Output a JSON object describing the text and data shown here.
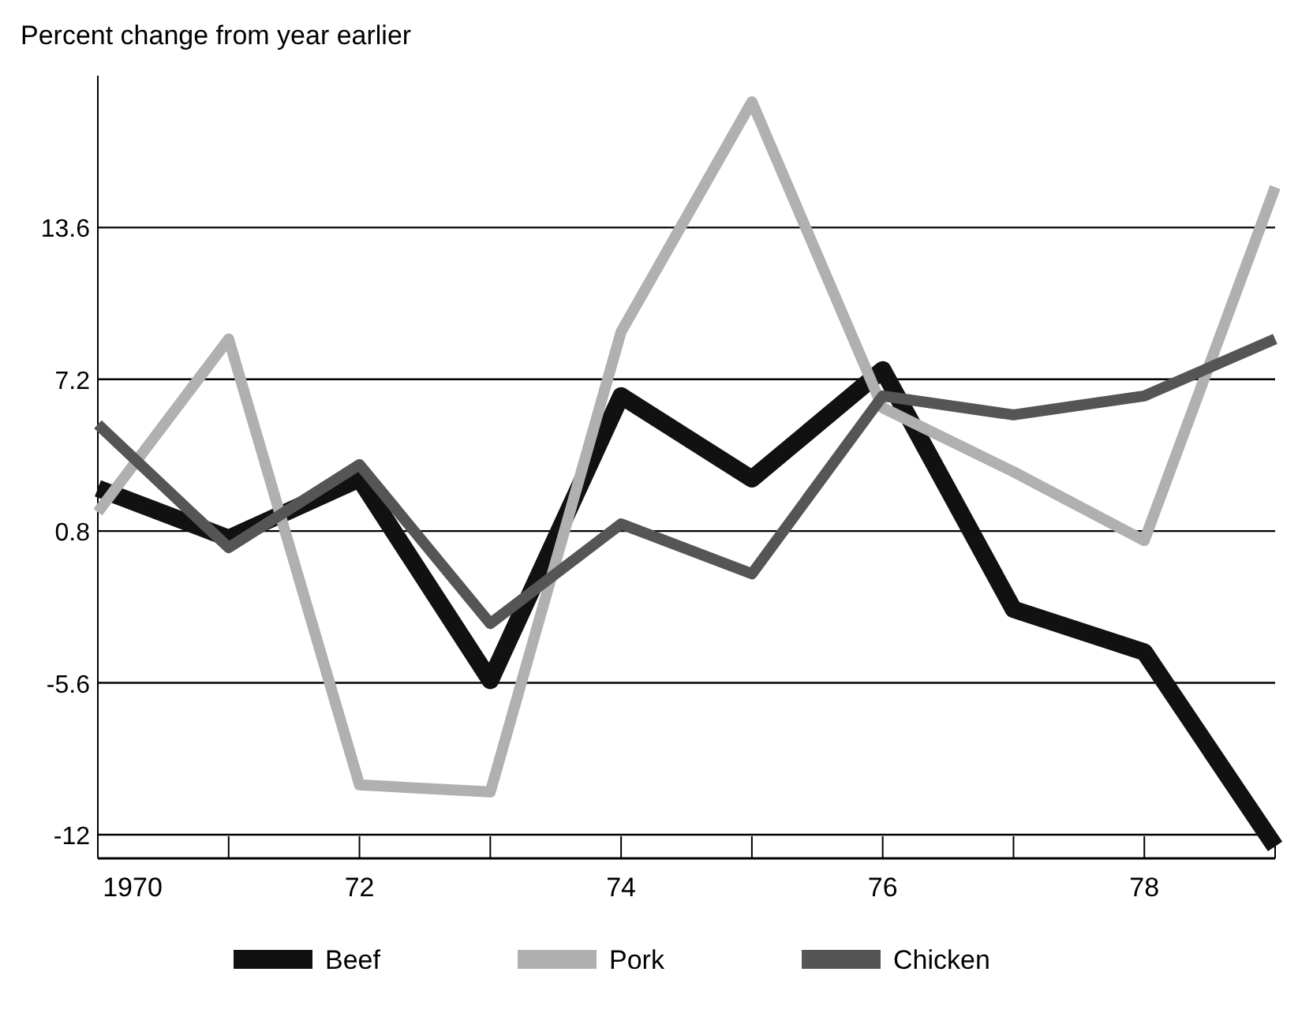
{
  "chart_data": {
    "type": "line",
    "ylabel": "Percent change from year earlier",
    "x": [
      1970,
      1971,
      1972,
      1973,
      1974,
      1975,
      1976,
      1977,
      1978,
      1979
    ],
    "xlim": [
      1970,
      1979
    ],
    "xticks": [
      1970,
      {
        "value": 1971,
        "label": null
      },
      {
        "value": 1972,
        "label": "72"
      },
      {
        "value": 1973,
        "label": null
      },
      {
        "value": 1974,
        "label": "74"
      },
      {
        "value": 1975,
        "label": null
      },
      {
        "value": 1976,
        "label": "76"
      },
      {
        "value": 1977,
        "label": null
      },
      {
        "value": 1978,
        "label": "78"
      },
      {
        "value": 1979,
        "label": null
      }
    ],
    "ylim": [
      -13,
      20
    ],
    "yticks": [
      -12.0,
      -5.6,
      0.8,
      7.2,
      13.6
    ],
    "grid": "y",
    "legend": "bottom",
    "marker": "none",
    "series": [
      {
        "name": "Beef",
        "color": "#111111",
        "values": [
          2.6,
          0.5,
          3.0,
          -5.5,
          6.5,
          3.0,
          7.6,
          -2.5,
          -4.3,
          -12.5
        ]
      },
      {
        "name": "Pork",
        "color": "#b0b0b0",
        "values": [
          1.6,
          8.9,
          -9.9,
          -10.2,
          9.2,
          18.9,
          6.0,
          3.3,
          0.4,
          15.3
        ]
      },
      {
        "name": "Chicken",
        "color": "#555555",
        "values": [
          5.3,
          0.1,
          3.6,
          -3.1,
          1.1,
          -1.0,
          6.5,
          5.7,
          6.5,
          8.9
        ]
      }
    ]
  }
}
